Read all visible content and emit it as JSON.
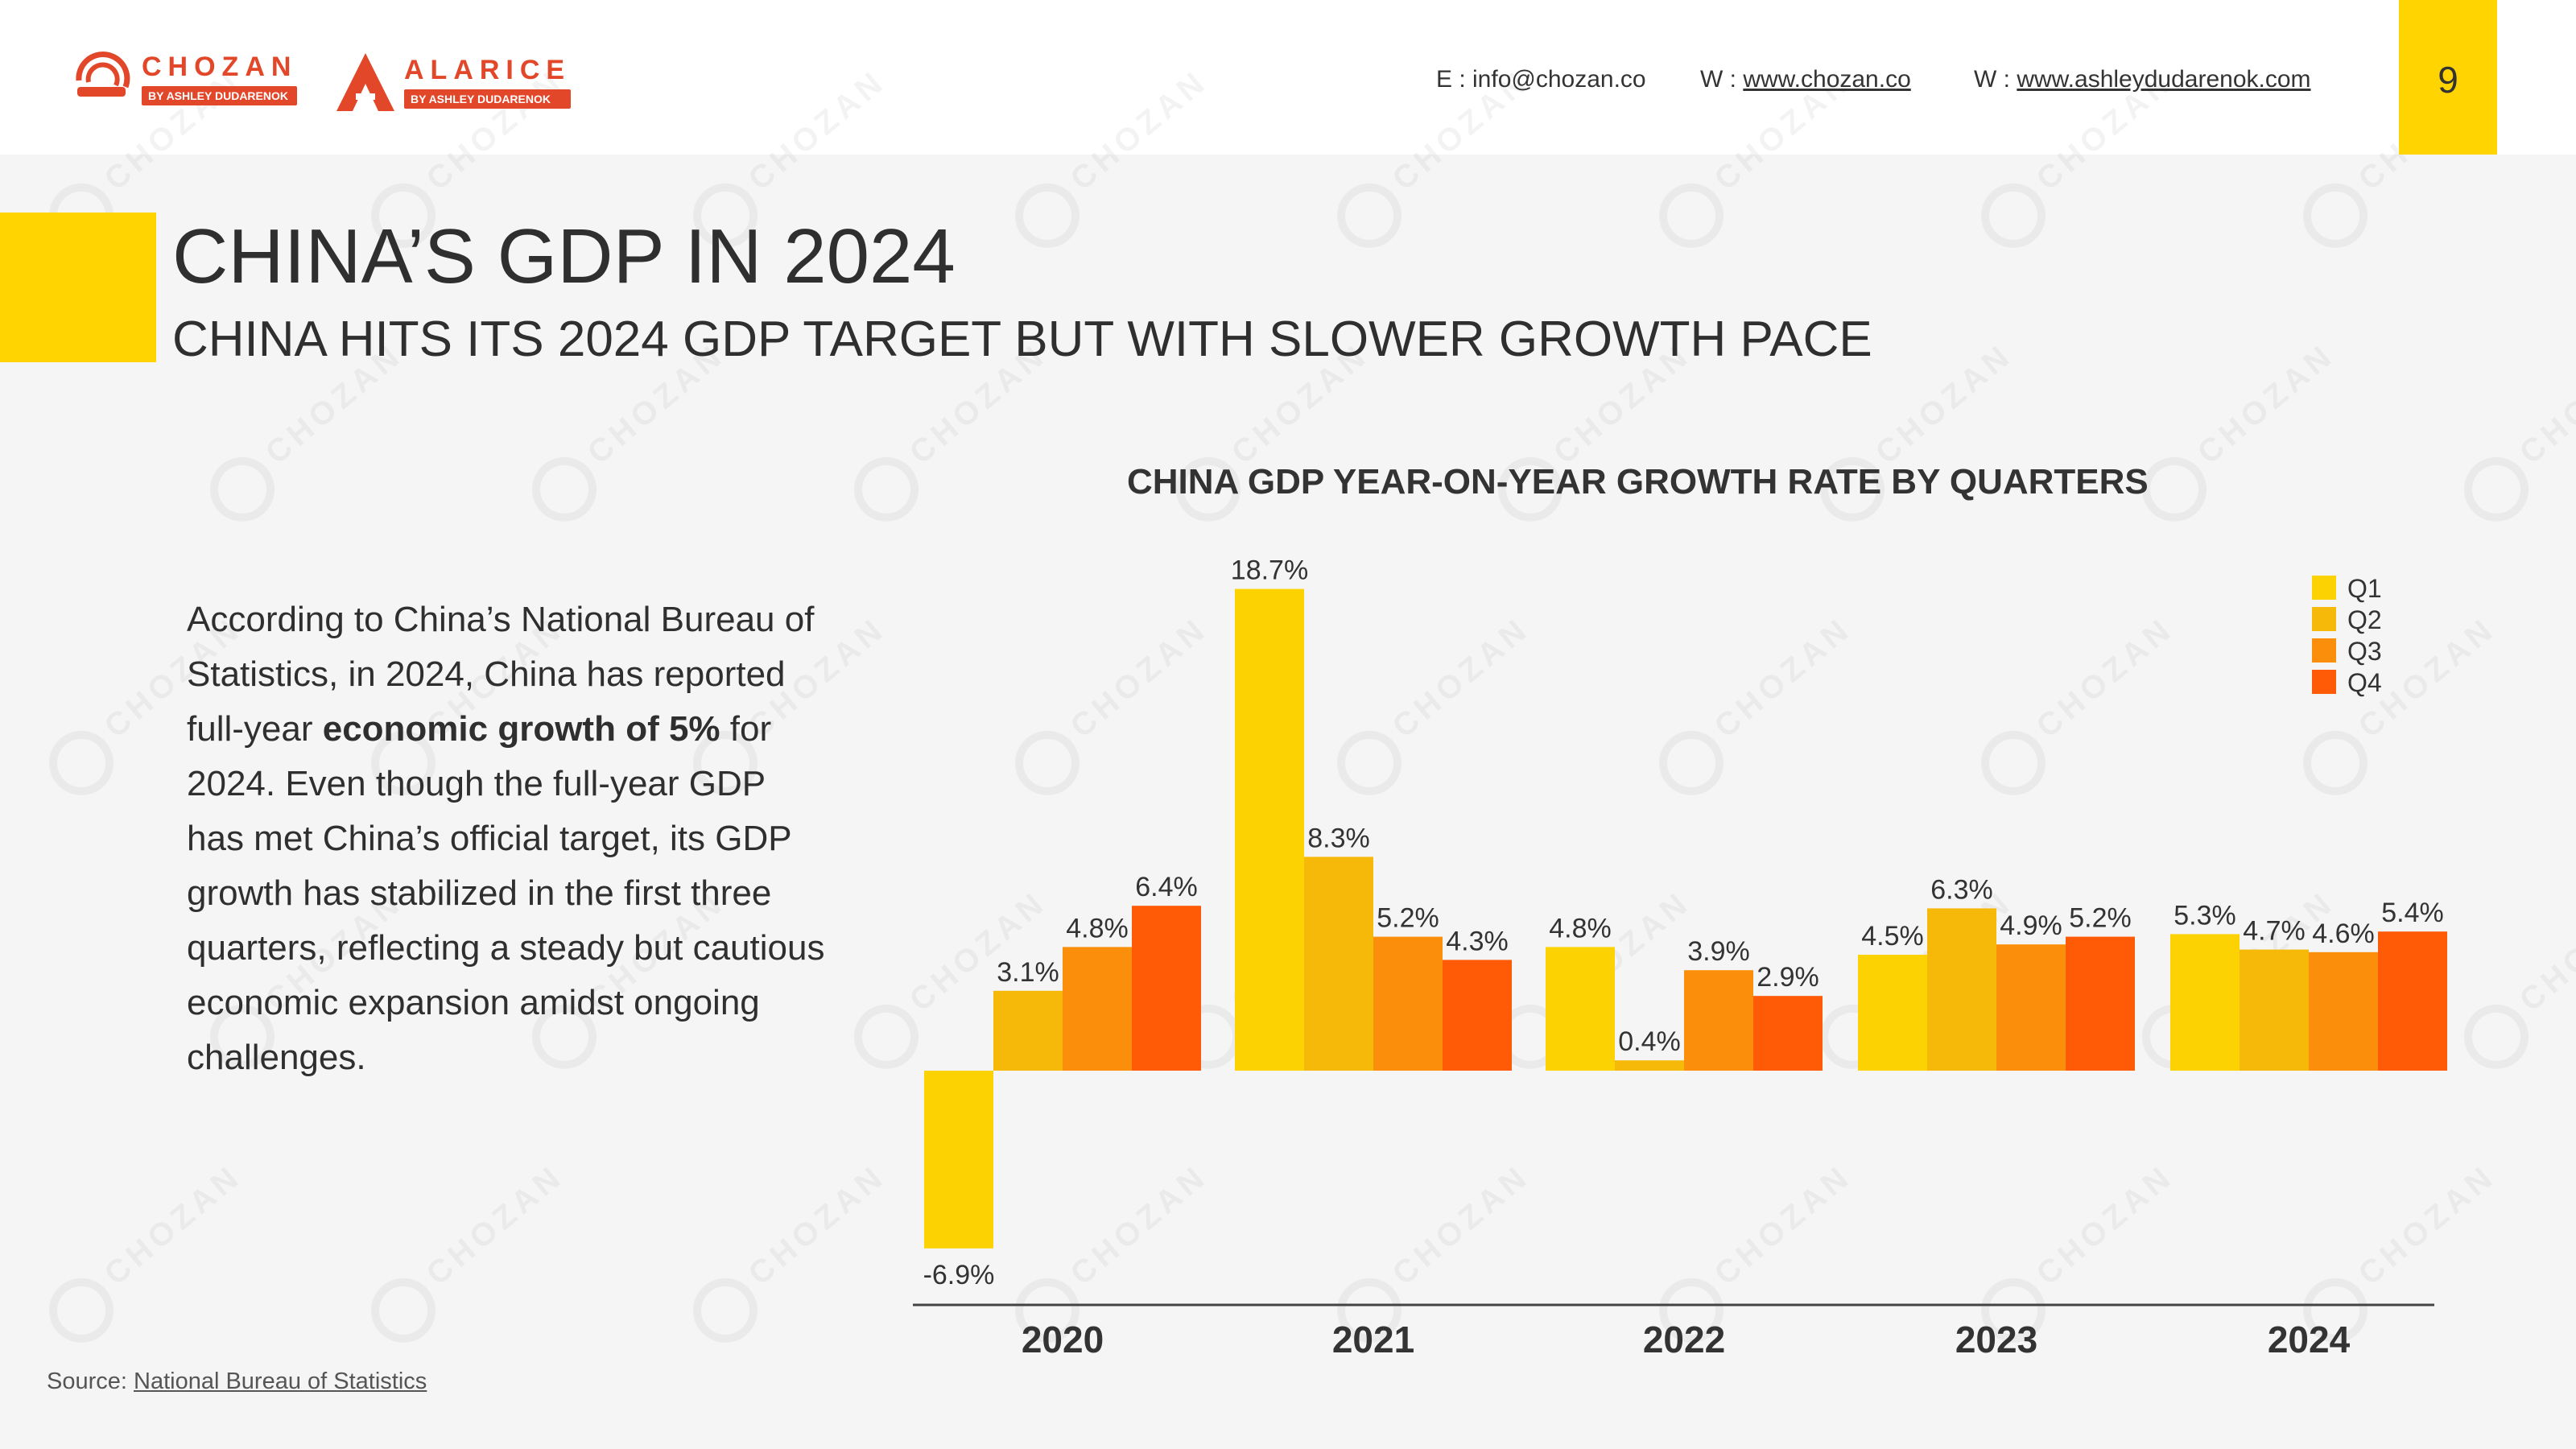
{
  "header": {
    "brand1": {
      "name": "CHOZAN",
      "sub": "BY ASHLEY DUDARENOK"
    },
    "brand2": {
      "name": "ALARICE",
      "sub": "BY ASHLEY DUDARENOK"
    },
    "email_label": "E : info@chozan.co",
    "web1_label": "W : ",
    "web1_link": "www.chozan.co",
    "web2_label": "W : ",
    "web2_link": "www.ashleydudarenok.com",
    "page_number": "9"
  },
  "title": "CHINA’S GDP IN 2024",
  "subtitle": "CHINA HITS ITS 2024 GDP TARGET BUT WITH SLOWER GROWTH PACE",
  "body": {
    "part1": "According to China’s National Bureau of Statistics, in 2024, China has reported full-year ",
    "bold": "economic growth of 5%",
    "part2": " for 2024. Even though the full-year GDP has met China’s official target, its GDP growth has stabilized in the first three quarters, reflecting a steady but cautious economic expansion amidst ongoing challenges."
  },
  "source": {
    "label": "Source: ",
    "link": "National Bureau of Statistics"
  },
  "colors": {
    "accent": "#ffd400",
    "brand": "#e2472a",
    "q1": "#fcd203",
    "q2": "#f6b90a",
    "q3": "#fb8f0b",
    "q4": "#ff5a06"
  },
  "chart_data": {
    "type": "bar",
    "title": "CHINA GDP YEAR-ON-YEAR GROWTH RATE BY QUARTERS",
    "categories": [
      "2020",
      "2021",
      "2022",
      "2023",
      "2024"
    ],
    "series": [
      {
        "name": "Q1",
        "color": "#fcd203",
        "values": [
          -6.9,
          18.7,
          4.8,
          4.5,
          5.3
        ],
        "labels": [
          "-6.9%",
          "18.7%",
          "4.8%",
          "4.5%",
          "5.3%"
        ]
      },
      {
        "name": "Q2",
        "color": "#f6b90a",
        "values": [
          3.1,
          8.3,
          0.4,
          6.3,
          4.7
        ],
        "labels": [
          "3.1%",
          "8.3%",
          "0.4%",
          "6.3%",
          "4.7%"
        ]
      },
      {
        "name": "Q3",
        "color": "#fb8f0b",
        "values": [
          4.8,
          5.2,
          3.9,
          4.9,
          4.6
        ],
        "labels": [
          "4.8%",
          "5.2%",
          "3.9%",
          "4.9%",
          "4.6%"
        ]
      },
      {
        "name": "Q4",
        "color": "#ff5a06",
        "values": [
          6.4,
          4.3,
          2.9,
          5.2,
          5.4
        ],
        "labels": [
          "6.4%",
          "4.3%",
          "2.9%",
          "5.2%",
          "5.4%"
        ]
      }
    ],
    "xlabel": "",
    "ylabel": "",
    "ylim": [
      -6.9,
      18.7
    ],
    "grid": false,
    "legend": "top-right"
  }
}
